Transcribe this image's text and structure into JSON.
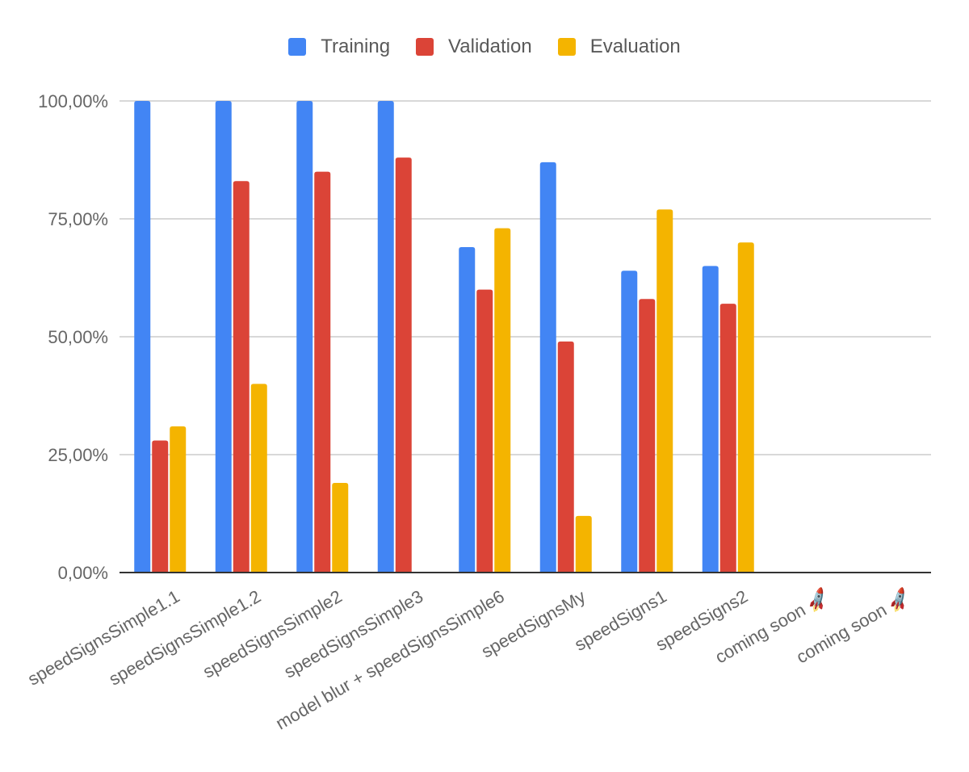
{
  "chart_data": {
    "type": "bar",
    "categories": [
      "speedSignsSimple1.1",
      "speedSignsSimple1.2",
      "speedSignsSimple2",
      "speedSignsSimple3",
      "model blur + speedSignsSimple6",
      "speedSignsMy",
      "speedSigns1",
      "speedSigns2",
      "coming soon 🚀",
      "coming soon 🚀"
    ],
    "series": [
      {
        "name": "Training",
        "color": "#4285F4",
        "values": [
          100,
          100,
          100,
          100,
          69,
          87,
          64,
          65,
          null,
          null
        ]
      },
      {
        "name": "Validation",
        "color": "#DB4437",
        "values": [
          28,
          83,
          85,
          88,
          60,
          49,
          58,
          57,
          null,
          null
        ]
      },
      {
        "name": "Evaluation",
        "color": "#F4B400",
        "values": [
          31,
          40,
          19,
          null,
          73,
          12,
          77,
          70,
          null,
          null
        ]
      }
    ],
    "yticks": [
      "0,00%",
      "25,00%",
      "50,00%",
      "75,00%",
      "100,00%"
    ],
    "ylim": [
      0,
      100
    ],
    "grid": true,
    "legend_position": "top"
  }
}
